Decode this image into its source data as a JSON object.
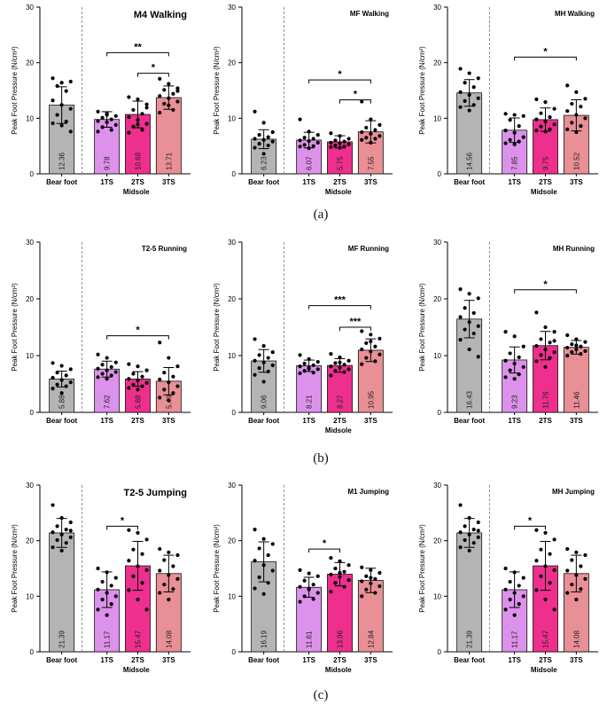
{
  "colors": {
    "bare": "#b4b4b4",
    "ts1": "#dc92ea",
    "ts2": "#ee2f8d",
    "ts3": "#e98f96"
  },
  "rows": [
    {
      "label": "(a)"
    },
    {
      "label": "(b)"
    },
    {
      "label": "(c)"
    }
  ],
  "chart_data": [
    {
      "type": "bar",
      "title": "M4 Walking",
      "ylabel": "Peak Foot Pressure  (N/cm²)",
      "xlabel": "Midsole",
      "categories": [
        "Bear foot",
        "1TS",
        "2TS",
        "3TS"
      ],
      "ylim": [
        0,
        30
      ],
      "yticks": [
        "0",
        "10",
        "20",
        "30"
      ],
      "values": [
        12.36,
        9.78,
        10.68,
        13.71
      ],
      "value_labels": [
        "12.36",
        "9.78",
        "10.68",
        "13.71"
      ],
      "errors": [
        3.3,
        1.4,
        2.4,
        2.1
      ],
      "points": [
        [
          17.2,
          16.4,
          16.6,
          15.8,
          14.9,
          13.2,
          12.4,
          11.7,
          10.6,
          9.4,
          9.1,
          8.7,
          7.6
        ],
        [
          11.2,
          10.6,
          10.4,
          10.1,
          9.8,
          9.5,
          9.3,
          8.8,
          8.4,
          7.9,
          7.6,
          10.9
        ],
        [
          13.8,
          13.4,
          12.5,
          11.5,
          10.8,
          10.2,
          9.7,
          9.0,
          8.5,
          7.9,
          7.4,
          8.9,
          11.9
        ],
        [
          17.1,
          16.2,
          15.4,
          15.1,
          14.4,
          14.0,
          13.6,
          13.0,
          12.6,
          11.5,
          11.0,
          12.3,
          14.9
        ]
      ],
      "significance": [
        {
          "from": 1,
          "to": 3,
          "level": 21.8,
          "label": "**"
        },
        {
          "from": 2,
          "to": 3,
          "level": 18.1,
          "label": "*"
        }
      ],
      "title_style": "large"
    },
    {
      "type": "bar",
      "title": "MF Walking",
      "ylabel": "Peak Foot Pressure  (N/cm²)",
      "xlabel": "Midsole",
      "categories": [
        "Bear foot",
        "1TS",
        "2TS",
        "3TS"
      ],
      "ylim": [
        0,
        30
      ],
      "yticks": [
        "0",
        "10",
        "20",
        "30"
      ],
      "values": [
        6.23,
        6.07,
        5.75,
        7.55
      ],
      "value_labels": [
        "6.23",
        "6.07",
        "5.75",
        "7.55"
      ],
      "errors": [
        1.7,
        1.4,
        1.1,
        2.0
      ],
      "points": [
        [
          11.2,
          9.2,
          7.5,
          7.0,
          6.6,
          6.3,
          6.1,
          5.8,
          5.4,
          5.1,
          4.7,
          3.6
        ],
        [
          9.8,
          7.6,
          7.0,
          6.5,
          6.3,
          6.0,
          5.9,
          5.6,
          5.2,
          5.0,
          4.9,
          4.6
        ],
        [
          7.3,
          6.8,
          6.3,
          6.0,
          5.8,
          5.6,
          5.5,
          5.3,
          5.1,
          4.9,
          4.8,
          4.7
        ],
        [
          13.0,
          9.8,
          8.8,
          8.3,
          7.9,
          7.5,
          7.2,
          6.8,
          6.5,
          6.3,
          6.1,
          5.6
        ]
      ],
      "significance": [
        {
          "from": 1,
          "to": 3,
          "level": 16.9,
          "label": "*"
        },
        {
          "from": 2,
          "to": 3,
          "level": 13.3,
          "label": "*"
        }
      ],
      "title_style": "small"
    },
    {
      "type": "bar",
      "title": "MH Walking",
      "ylabel": "Peak Foot Pressure  (N/cm²)",
      "xlabel": "Midsole",
      "categories": [
        "Bear foot",
        "1TS",
        "2TS",
        "3TS"
      ],
      "ylim": [
        0,
        30
      ],
      "yticks": [
        "0",
        "10",
        "20",
        "30"
      ],
      "values": [
        14.56,
        7.85,
        9.75,
        10.52
      ],
      "value_labels": [
        "14.56",
        "7.85",
        "9.75",
        "10.52"
      ],
      "errors": [
        2.4,
        2.2,
        2.1,
        2.8
      ],
      "points": [
        [
          18.9,
          18.1,
          17.2,
          16.4,
          15.6,
          14.7,
          14.2,
          13.6,
          13.1,
          12.4,
          12.0,
          11.4
        ],
        [
          10.8,
          10.6,
          10.4,
          9.7,
          8.6,
          7.8,
          7.4,
          6.6,
          6.1,
          5.8,
          5.5,
          5.3
        ],
        [
          13.4,
          12.9,
          11.7,
          10.9,
          10.2,
          9.8,
          9.4,
          8.9,
          8.5,
          8.0,
          7.8,
          7.6
        ],
        [
          15.9,
          14.7,
          13.5,
          12.6,
          12.1,
          11.3,
          10.6,
          10.0,
          9.2,
          8.6,
          8.0,
          7.5
        ]
      ],
      "significance": [
        {
          "from": 1,
          "to": 3,
          "level": 21.0,
          "label": "*"
        }
      ],
      "title_style": "small"
    },
    {
      "type": "bar",
      "title": "T2-5 Running",
      "ylabel": "Peak Foot Pressure  (N/cm²)",
      "xlabel": "",
      "categories": [
        "Bear foot",
        "1TS",
        "2TS",
        "3TS"
      ],
      "ylim": [
        0,
        30
      ],
      "yticks": [
        "0",
        "10",
        "20",
        "30"
      ],
      "values": [
        5.88,
        7.62,
        5.88,
        5.49
      ],
      "value_labels": [
        "5.88",
        "7.62",
        "5.88",
        "5.49"
      ],
      "errors": [
        1.4,
        1.4,
        1.3,
        2.4
      ],
      "points": [
        [
          8.7,
          8.2,
          7.6,
          7.0,
          6.5,
          6.1,
          5.7,
          5.3,
          4.9,
          4.6,
          4.2,
          3.4
        ],
        [
          10.2,
          9.6,
          8.8,
          8.4,
          8.0,
          7.7,
          7.4,
          7.1,
          6.8,
          6.5,
          6.2,
          5.9
        ],
        [
          8.5,
          8.1,
          7.4,
          6.8,
          6.3,
          5.9,
          5.6,
          5.2,
          4.9,
          4.6,
          4.3,
          4.0
        ],
        [
          12.3,
          9.6,
          8.1,
          7.0,
          6.3,
          5.8,
          5.3,
          4.6,
          4.0,
          3.4,
          2.6,
          2.1
        ]
      ],
      "significance": [
        {
          "from": 1,
          "to": 3,
          "level": 13.5,
          "label": "*"
        }
      ],
      "title_style": "small"
    },
    {
      "type": "bar",
      "title": "MF Running",
      "ylabel": "Peak Foot Pressure  (N/cm²)",
      "xlabel": "Midsole",
      "categories": [
        "Bear foot",
        "1TS",
        "2TS",
        "3TS"
      ],
      "ylim": [
        0,
        30
      ],
      "yticks": [
        "0",
        "10",
        "20",
        "30"
      ],
      "values": [
        9.06,
        8.21,
        8.27,
        10.95
      ],
      "value_labels": [
        "9.06",
        "8.21",
        "8.27",
        "10.95"
      ],
      "errors": [
        2.0,
        1.0,
        1.2,
        2.0
      ],
      "points": [
        [
          12.9,
          11.7,
          10.6,
          10.1,
          9.6,
          9.1,
          8.8,
          8.3,
          7.8,
          7.2,
          6.6,
          5.4
        ],
        [
          10.1,
          9.4,
          8.9,
          8.6,
          8.3,
          8.1,
          7.9,
          7.6,
          7.3,
          7.0,
          6.9,
          7.7
        ],
        [
          10.3,
          9.7,
          9.1,
          8.7,
          8.4,
          8.1,
          7.9,
          7.6,
          7.3,
          7.1,
          6.5,
          8.8
        ],
        [
          14.3,
          13.7,
          13.0,
          12.2,
          11.6,
          11.1,
          10.7,
          10.2,
          9.6,
          9.0,
          8.5,
          12.5
        ]
      ],
      "significance": [
        {
          "from": 1,
          "to": 3,
          "level": 18.8,
          "label": "***"
        },
        {
          "from": 2,
          "to": 3,
          "level": 15.0,
          "label": "***"
        }
      ],
      "title_style": "small"
    },
    {
      "type": "bar",
      "title": "MH Running",
      "ylabel": "Peak Foot Pressure  (N/cm²)",
      "xlabel": "",
      "categories": [
        "Bear foot",
        "1TS",
        "2TS",
        "3TS"
      ],
      "ylim": [
        0,
        30
      ],
      "yticks": [
        "0",
        "10",
        "20",
        "30"
      ],
      "values": [
        16.43,
        9.23,
        11.76,
        11.46
      ],
      "value_labels": [
        "16.43",
        "9.23",
        "11.76",
        "11.46"
      ],
      "errors": [
        3.3,
        2.3,
        2.5,
        1.2
      ],
      "points": [
        [
          21.7,
          20.9,
          20.1,
          18.4,
          17.5,
          16.8,
          15.9,
          15.2,
          14.6,
          13.9,
          12.8,
          11.1,
          9.8
        ],
        [
          14.2,
          13.4,
          11.6,
          10.4,
          9.7,
          9.1,
          8.6,
          8.0,
          7.4,
          6.7,
          6.2,
          5.9
        ],
        [
          17.6,
          15.0,
          14.2,
          12.9,
          12.3,
          11.7,
          11.1,
          10.6,
          10.1,
          9.6,
          9.0,
          8.0,
          12.6
        ],
        [
          13.6,
          12.9,
          12.4,
          12.0,
          11.6,
          11.4,
          11.1,
          10.8,
          10.6,
          10.3,
          10.0,
          11.8
        ]
      ],
      "significance": [
        {
          "from": 1,
          "to": 3,
          "level": 21.6,
          "label": "*"
        }
      ],
      "title_style": "small"
    },
    {
      "type": "bar",
      "title": "T2-5 Jumping",
      "ylabel": "Peak Foot Pressure  (N/cm²)",
      "xlabel": "Midsole",
      "categories": [
        "Bear foot",
        "1TS",
        "2TS",
        "3TS"
      ],
      "ylim": [
        0,
        30
      ],
      "yticks": [
        "0",
        "10",
        "20",
        "30"
      ],
      "values": [
        21.39,
        11.17,
        15.47,
        14.08
      ],
      "value_labels": [
        "21.39",
        "11.17",
        "15.47",
        "14.08"
      ],
      "errors": [
        2.6,
        3.2,
        4.4,
        3.3
      ],
      "points": [
        [
          26.4,
          24.1,
          23.3,
          22.6,
          22.0,
          21.5,
          21.1,
          20.6,
          20.1,
          19.6,
          18.8,
          18.2,
          21.8
        ],
        [
          15.0,
          14.3,
          13.3,
          12.6,
          11.9,
          11.2,
          10.6,
          10.0,
          9.4,
          8.6,
          7.6,
          6.6
        ],
        [
          21.9,
          21.4,
          20.2,
          18.4,
          17.6,
          16.4,
          15.4,
          14.7,
          13.6,
          12.4,
          11.1,
          9.4,
          7.6
        ],
        [
          18.5,
          17.9,
          17.4,
          16.5,
          15.4,
          14.6,
          13.8,
          13.1,
          12.1,
          11.3,
          10.6,
          9.4
        ]
      ],
      "significance": [
        {
          "from": 1,
          "to": 2,
          "level": 22.6,
          "label": "*"
        }
      ],
      "title_style": "large"
    },
    {
      "type": "bar",
      "title": "M1 Jumping",
      "ylabel": "Peak Foot Pressure  (N/cm²)",
      "xlabel": "Midsole",
      "categories": [
        "Bear foot",
        "1TS",
        "2TS",
        "3TS"
      ],
      "ylim": [
        0,
        30
      ],
      "yticks": [
        "0",
        "10",
        "20",
        "30"
      ],
      "values": [
        16.19,
        11.61,
        13.96,
        12.84
      ],
      "value_labels": [
        "16.19",
        "11.61",
        "13.96",
        "12.84"
      ],
      "errors": [
        3.6,
        1.8,
        2.1,
        2.2
      ],
      "points": [
        [
          22.0,
          20.3,
          19.4,
          18.6,
          17.4,
          16.4,
          15.6,
          14.6,
          13.4,
          12.4,
          11.4,
          10.4
        ],
        [
          14.7,
          14.1,
          13.6,
          12.8,
          12.1,
          11.7,
          11.2,
          10.6,
          10.0,
          9.5,
          9.0,
          11.4
        ],
        [
          16.9,
          16.3,
          15.6,
          15.0,
          14.4,
          13.9,
          13.5,
          12.9,
          12.4,
          11.7,
          10.8,
          14.2
        ],
        [
          15.2,
          14.7,
          14.2,
          13.6,
          13.1,
          12.7,
          12.3,
          11.8,
          11.2,
          10.6,
          10.0,
          13.3
        ]
      ],
      "significance": [
        {
          "from": 1,
          "to": 2,
          "level": 18.5,
          "label": "*"
        }
      ],
      "title_style": "small"
    },
    {
      "type": "bar",
      "title": "MH Jumping",
      "ylabel": "Peak Foot Pressure  (N/cm²)",
      "xlabel": "Midsole",
      "categories": [
        "Bear foot",
        "1TS",
        "2TS",
        "3TS"
      ],
      "ylim": [
        0,
        30
      ],
      "yticks": [
        "0",
        "10",
        "20",
        "30"
      ],
      "values": [
        21.39,
        11.17,
        15.47,
        14.08
      ],
      "value_labels": [
        "21.39",
        "11.17",
        "15.47",
        "14.08"
      ],
      "errors": [
        2.6,
        3.2,
        4.4,
        3.3
      ],
      "points": [
        [
          26.4,
          24.1,
          23.3,
          22.6,
          22.0,
          21.5,
          21.1,
          20.6,
          20.1,
          19.6,
          18.8,
          18.2,
          21.8
        ],
        [
          15.0,
          14.3,
          13.3,
          12.6,
          11.9,
          11.2,
          10.6,
          10.0,
          9.4,
          8.6,
          7.6,
          6.6
        ],
        [
          21.9,
          21.4,
          20.2,
          18.4,
          17.6,
          16.4,
          15.4,
          14.7,
          13.6,
          12.4,
          11.1,
          9.4,
          7.6
        ],
        [
          18.5,
          17.9,
          17.4,
          16.5,
          15.4,
          14.6,
          13.8,
          13.1,
          12.1,
          11.3,
          10.6,
          9.4
        ]
      ],
      "significance": [
        {
          "from": 1,
          "to": 2,
          "level": 22.6,
          "label": "*"
        }
      ],
      "title_style": "small"
    }
  ]
}
